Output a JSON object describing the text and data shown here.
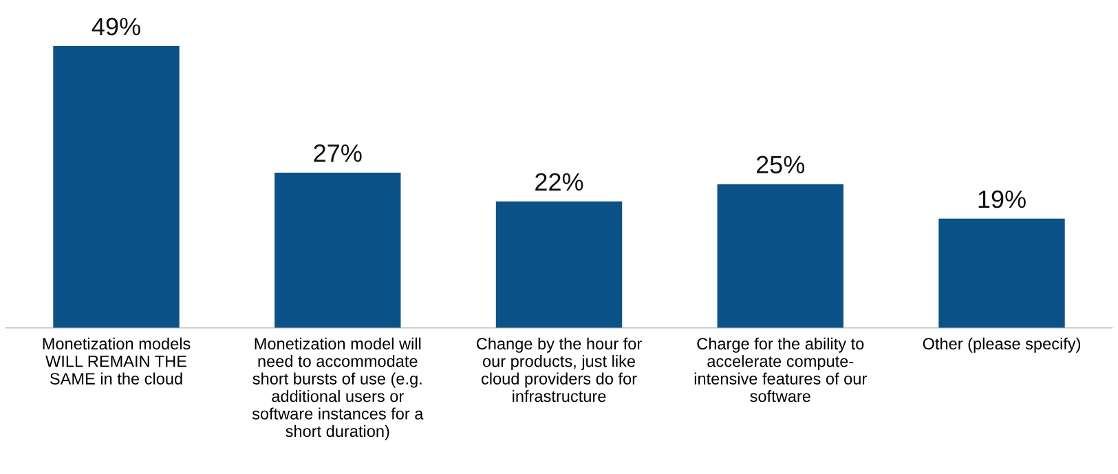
{
  "chart_data": {
    "type": "bar",
    "categories": [
      "Monetization models\nWILL REMAIN THE\nSAME in the cloud",
      "Monetization model will\nneed to accommodate\nshort bursts of use (e.g.\nadditional users or\nsoftware instances for a\nshort duration)",
      "Change by the hour for\nour products, just like\ncloud providers do for\ninfrastructure",
      "Charge for the ability to\naccelerate compute-\nintensive features of our\nsoftware",
      "Other (please specify)"
    ],
    "values": [
      49,
      27,
      22,
      25,
      19
    ],
    "value_labels": [
      "49%",
      "27%",
      "22%",
      "25%",
      "19%"
    ],
    "color": "#0a5288",
    "grid": false,
    "legend": false
  }
}
